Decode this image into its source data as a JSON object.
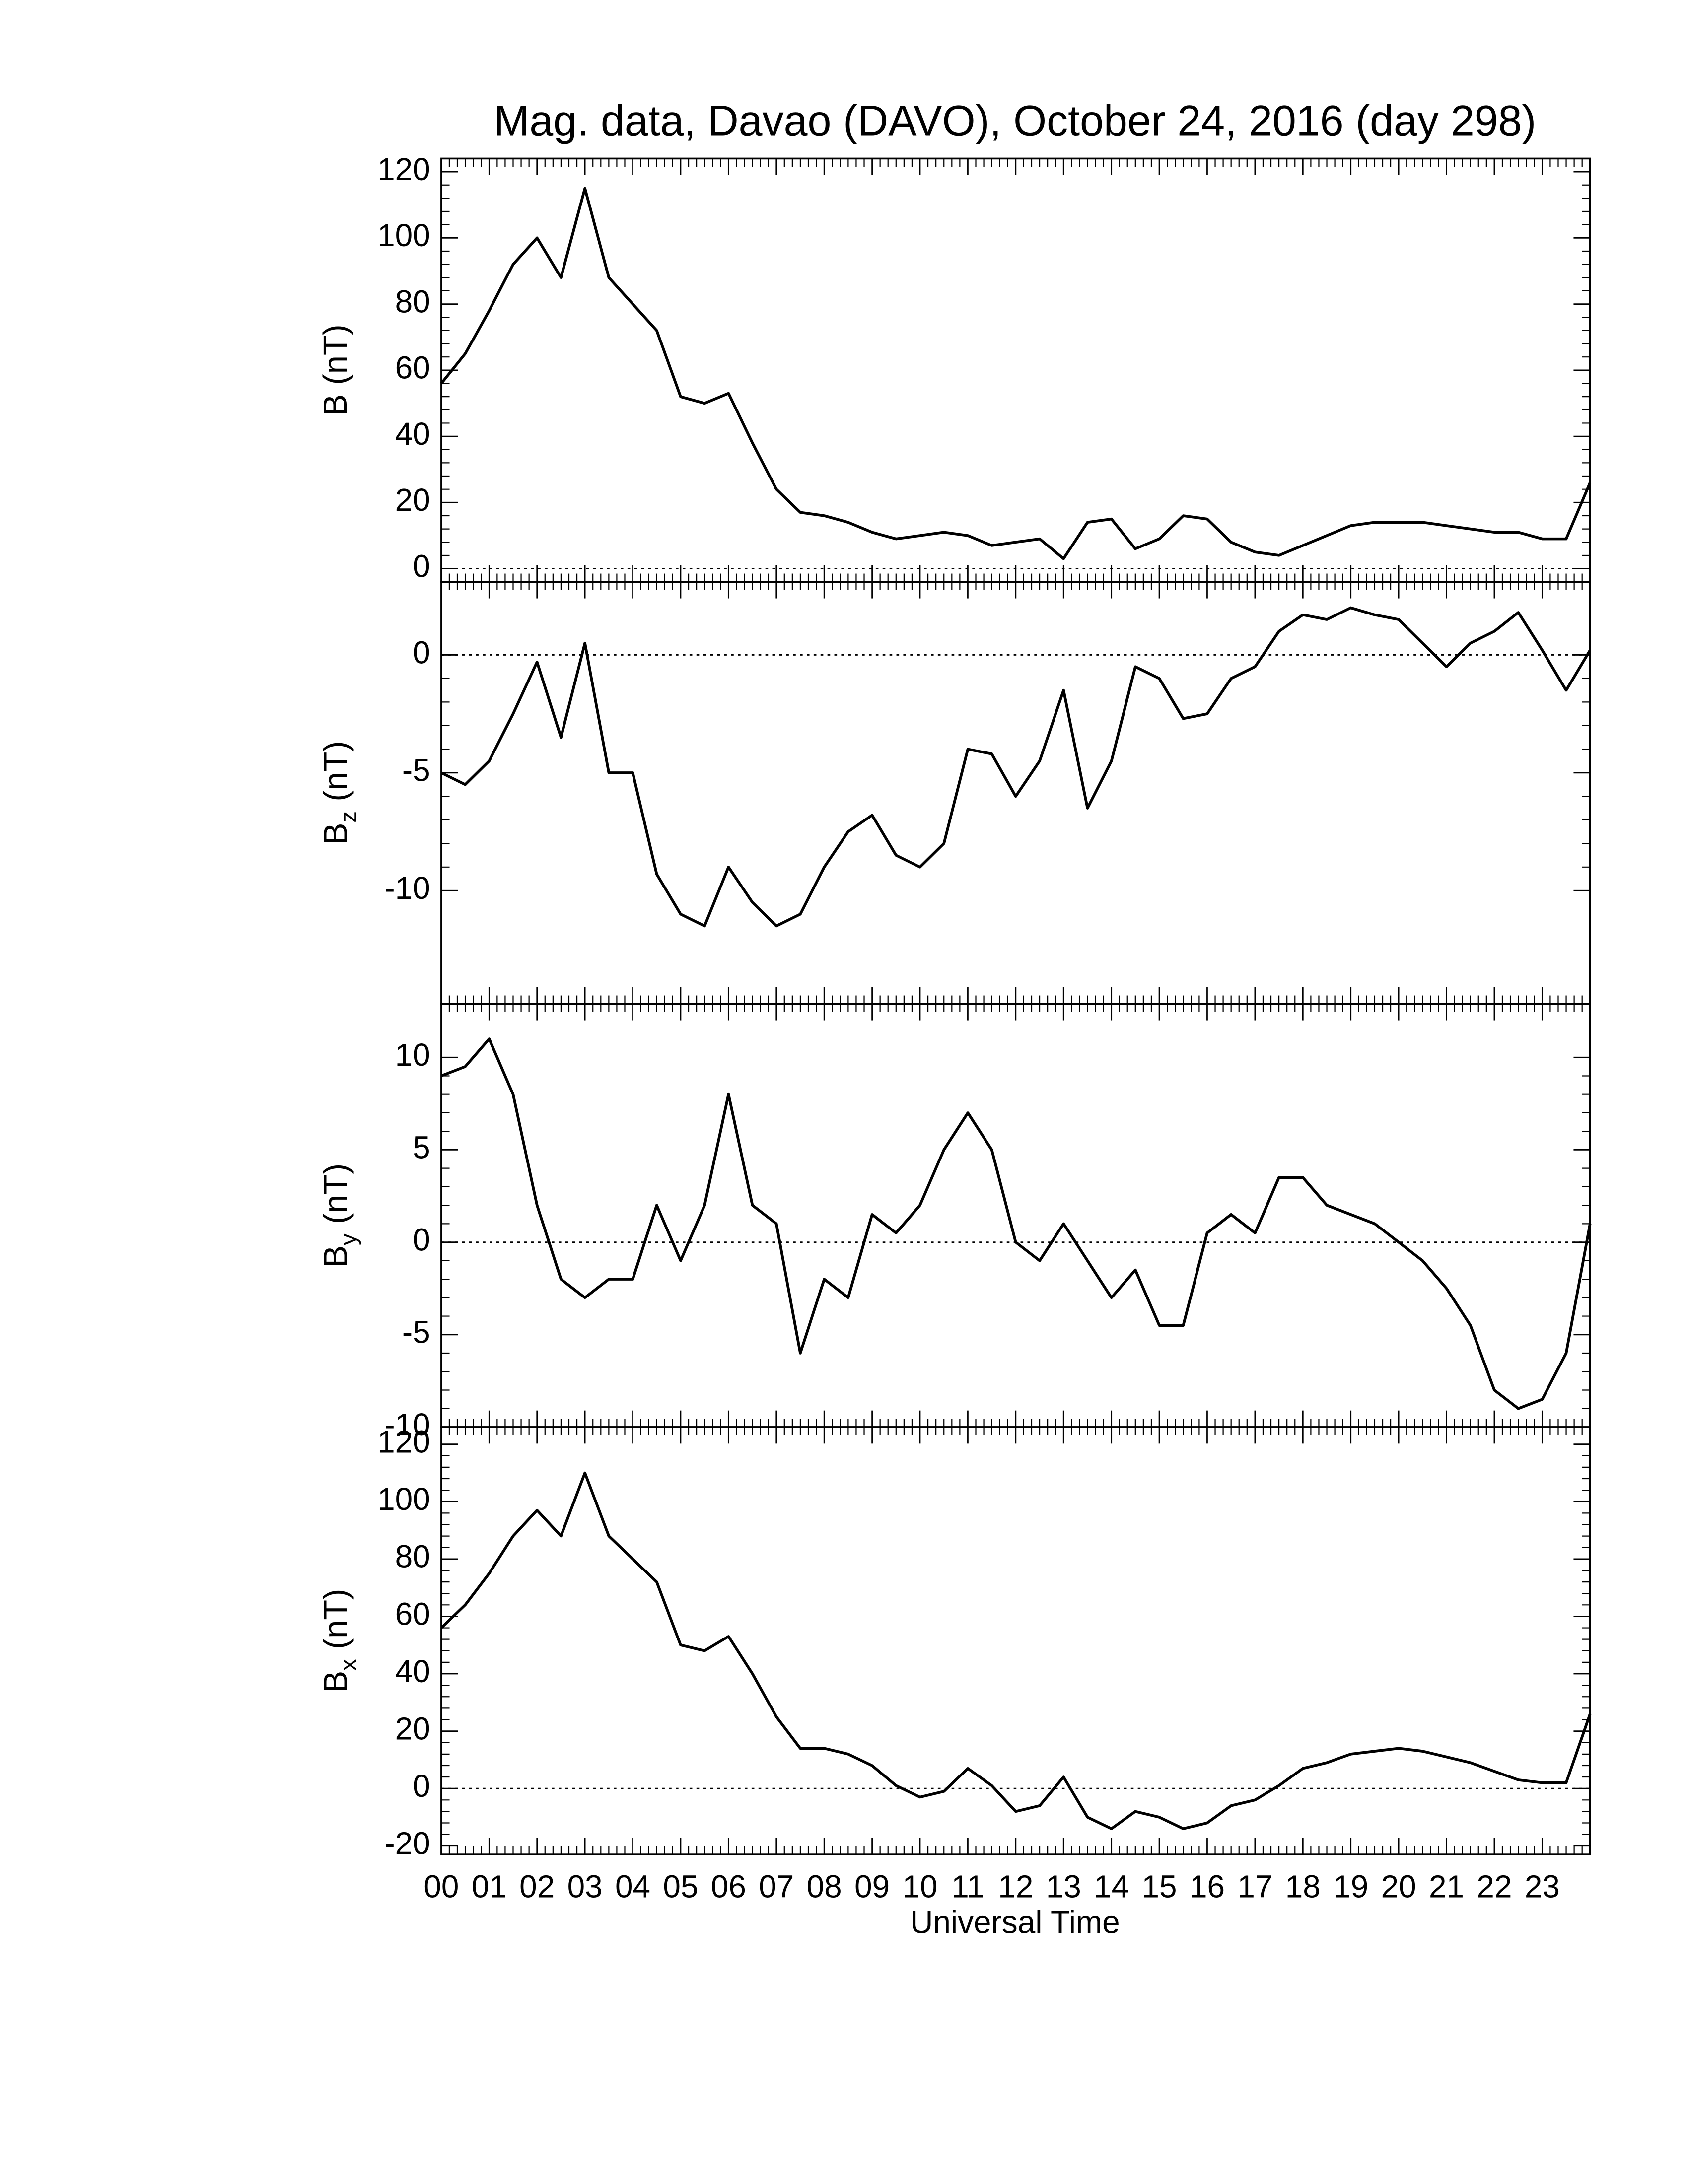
{
  "chart_data": [
    {
      "type": "line",
      "title": "Mag. data, Davao (DAVO), October 24, 2016 (day 298)",
      "ylabel": "B (nT)",
      "color": "#000000",
      "x": [
        0,
        0.5,
        1,
        1.5,
        2,
        2.5,
        3,
        3.5,
        4,
        4.5,
        5,
        5.5,
        6,
        6.5,
        7,
        7.5,
        8,
        8.5,
        9,
        9.5,
        10,
        10.5,
        11,
        11.5,
        12,
        12.5,
        13,
        13.5,
        14,
        14.5,
        15,
        15.5,
        16,
        16.5,
        17,
        17.5,
        18,
        18.5,
        19,
        19.5,
        20,
        20.5,
        21,
        21.5,
        22,
        22.5,
        23,
        23.5,
        24
      ],
      "values": [
        56,
        65,
        78,
        92,
        100,
        88,
        115,
        88,
        80,
        72,
        52,
        50,
        53,
        38,
        24,
        17,
        16,
        14,
        11,
        9,
        10,
        11,
        10,
        7,
        8,
        9,
        3,
        14,
        15,
        6,
        9,
        16,
        15,
        8,
        5,
        4,
        7,
        10,
        13,
        14,
        14,
        14,
        13,
        12,
        11,
        11,
        9,
        9,
        26
      ],
      "xlim": [
        0,
        24
      ],
      "ylim": [
        -4,
        124
      ],
      "yticks": [
        0,
        20,
        40,
        60,
        80,
        100,
        120
      ],
      "hline": 0
    },
    {
      "type": "line",
      "ylabel": [
        "B",
        "z",
        "(nT)"
      ],
      "color": "#000000",
      "x": [
        0,
        0.5,
        1,
        1.5,
        2,
        2.5,
        3,
        3.5,
        4,
        4.5,
        5,
        5.5,
        6,
        6.5,
        7,
        7.5,
        8,
        8.5,
        9,
        9.5,
        10,
        10.5,
        11,
        11.5,
        12,
        12.5,
        13,
        13.5,
        14,
        14.5,
        15,
        15.5,
        16,
        16.5,
        17,
        17.5,
        18,
        18.5,
        19,
        19.5,
        20,
        20.5,
        21,
        21.5,
        22,
        22.5,
        23,
        23.5,
        24
      ],
      "values": [
        -5,
        -5.5,
        -4.5,
        -2.5,
        -0.3,
        -3.5,
        0.5,
        -5,
        -5,
        -9.3,
        -11,
        -11.5,
        -9,
        -10.5,
        -11.5,
        -11,
        -9,
        -7.5,
        -6.8,
        -8.5,
        -9,
        -8,
        -4,
        -4.2,
        -6,
        -4.5,
        -1.5,
        -6.5,
        -4.5,
        -0.5,
        -1,
        -2.7,
        -2.5,
        -1,
        -0.5,
        1,
        1.7,
        1.5,
        2,
        1.7,
        1.5,
        0.5,
        -0.5,
        0.5,
        1,
        1.8,
        0.2,
        -1.5,
        0.2
      ],
      "xlim": [
        0,
        24
      ],
      "ylim": [
        -14.8,
        3.1
      ],
      "yticks": [
        -10,
        -5,
        0
      ],
      "hline": 0
    },
    {
      "type": "line",
      "ylabel": [
        "B",
        "y",
        "(nT)"
      ],
      "color": "#000000",
      "x": [
        0,
        0.5,
        1,
        1.5,
        2,
        2.5,
        3,
        3.5,
        4,
        4.5,
        5,
        5.5,
        6,
        6.5,
        7,
        7.5,
        8,
        8.5,
        9,
        9.5,
        10,
        10.5,
        11,
        11.5,
        12,
        12.5,
        13,
        13.5,
        14,
        14.5,
        15,
        15.5,
        16,
        16.5,
        17,
        17.5,
        18,
        18.5,
        19,
        19.5,
        20,
        20.5,
        21,
        21.5,
        22,
        22.5,
        23,
        23.5,
        24
      ],
      "values": [
        9,
        9.5,
        11,
        8,
        2,
        -2,
        -3,
        -2,
        -2,
        2,
        -1,
        2,
        8,
        2,
        1,
        -6,
        -2,
        -3,
        1.5,
        0.5,
        2,
        5,
        7,
        5,
        0,
        -1,
        1,
        -1,
        -3,
        -1.5,
        -4.5,
        -4.5,
        0.5,
        1.5,
        0.5,
        3.5,
        3.5,
        2,
        1.5,
        1,
        0,
        -1,
        -2.5,
        -4.5,
        -8,
        -9,
        -8.5,
        -6,
        1
      ],
      "xlim": [
        0,
        24
      ],
      "ylim": [
        -10,
        12.9
      ],
      "yticks": [
        -10,
        -5,
        0,
        5,
        10
      ],
      "hline": 0
    },
    {
      "type": "line",
      "ylabel": [
        "B",
        "x",
        "(nT)"
      ],
      "xlabel": "Universal Time",
      "color": "#000000",
      "x": [
        0,
        0.5,
        1,
        1.5,
        2,
        2.5,
        3,
        3.5,
        4,
        4.5,
        5,
        5.5,
        6,
        6.5,
        7,
        7.5,
        8,
        8.5,
        9,
        9.5,
        10,
        10.5,
        11,
        11.5,
        12,
        12.5,
        13,
        13.5,
        14,
        14.5,
        15,
        15.5,
        16,
        16.5,
        17,
        17.5,
        18,
        18.5,
        19,
        19.5,
        20,
        20.5,
        21,
        21.5,
        22,
        22.5,
        23,
        23.5,
        24
      ],
      "values": [
        56,
        64,
        75,
        88,
        97,
        88,
        110,
        88,
        80,
        72,
        50,
        48,
        53,
        40,
        25,
        14,
        14,
        12,
        8,
        1,
        -3,
        -1,
        7,
        1,
        -8,
        -6,
        4,
        -10,
        -14,
        -8,
        -10,
        -14,
        -12,
        -6,
        -4,
        1,
        7,
        9,
        12,
        13,
        14,
        13,
        11,
        9,
        6,
        3,
        2,
        2,
        26
      ],
      "xlim": [
        0,
        24
      ],
      "ylim": [
        -23,
        126
      ],
      "yticks": [
        -20,
        0,
        20,
        40,
        60,
        80,
        100,
        120
      ],
      "hline": 0,
      "xticks": [
        {
          "value": 0,
          "label": "00"
        },
        {
          "value": 1,
          "label": "01"
        },
        {
          "value": 2,
          "label": "02"
        },
        {
          "value": 3,
          "label": "03"
        },
        {
          "value": 4,
          "label": "04"
        },
        {
          "value": 5,
          "label": "05"
        },
        {
          "value": 6,
          "label": "06"
        },
        {
          "value": 7,
          "label": "07"
        },
        {
          "value": 8,
          "label": "08"
        },
        {
          "value": 9,
          "label": "09"
        },
        {
          "value": 10,
          "label": "10"
        },
        {
          "value": 11,
          "label": "11"
        },
        {
          "value": 12,
          "label": "12"
        },
        {
          "value": 13,
          "label": "13"
        },
        {
          "value": 14,
          "label": "14"
        },
        {
          "value": 15,
          "label": "15"
        },
        {
          "value": 16,
          "label": "16"
        },
        {
          "value": 17,
          "label": "17"
        },
        {
          "value": 18,
          "label": "18"
        },
        {
          "value": 19,
          "label": "19"
        },
        {
          "value": 20,
          "label": "20"
        },
        {
          "value": 21,
          "label": "21"
        },
        {
          "value": 22,
          "label": "22"
        },
        {
          "value": 23,
          "label": "23"
        }
      ]
    }
  ]
}
